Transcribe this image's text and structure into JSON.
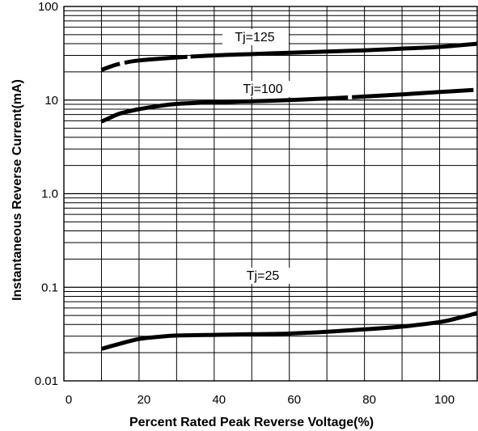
{
  "chart_data": {
    "type": "line",
    "title": "",
    "xlabel": "Percent Rated Peak Reverse Voltage(%)",
    "ylabel": "Instantaneous Reverse Current(mA)",
    "xlim": [
      0,
      110
    ],
    "ylim": [
      0.01,
      100
    ],
    "yscale": "log",
    "grid": true,
    "x_ticks": [
      0,
      20,
      40,
      60,
      80,
      100
    ],
    "x_tick_labels": [
      "0",
      "20",
      "40",
      "60",
      "80",
      "100"
    ],
    "y_ticks": [
      100,
      10,
      1,
      0.1,
      0.01
    ],
    "y_tick_labels": [
      "100",
      "10",
      "1.0",
      "0.1",
      "0.01"
    ],
    "series": [
      {
        "name": "Tj=125",
        "x": [
          10,
          12,
          15,
          20,
          30,
          40,
          50,
          60,
          70,
          80,
          90,
          100,
          110
        ],
        "y": [
          21,
          22.5,
          24.5,
          26.5,
          28.5,
          30,
          31,
          32,
          33,
          34,
          35.5,
          37,
          40
        ]
      },
      {
        "name": "Tj=100",
        "x": [
          10,
          12,
          15,
          20,
          25,
          30,
          40,
          50,
          60,
          70,
          80,
          90,
          100,
          109
        ],
        "y": [
          5.9,
          6.4,
          7.2,
          8.0,
          8.6,
          9.1,
          9.5,
          9.7,
          10.0,
          10.4,
          10.9,
          11.5,
          12.2,
          12.8
        ]
      },
      {
        "name": "Tj=25",
        "x": [
          10,
          15,
          20,
          25,
          30,
          40,
          50,
          60,
          70,
          80,
          90,
          100,
          105,
          110
        ],
        "y": [
          0.022,
          0.025,
          0.028,
          0.0295,
          0.0305,
          0.031,
          0.0315,
          0.032,
          0.0335,
          0.0355,
          0.038,
          0.0425,
          0.047,
          0.053
        ]
      }
    ]
  }
}
